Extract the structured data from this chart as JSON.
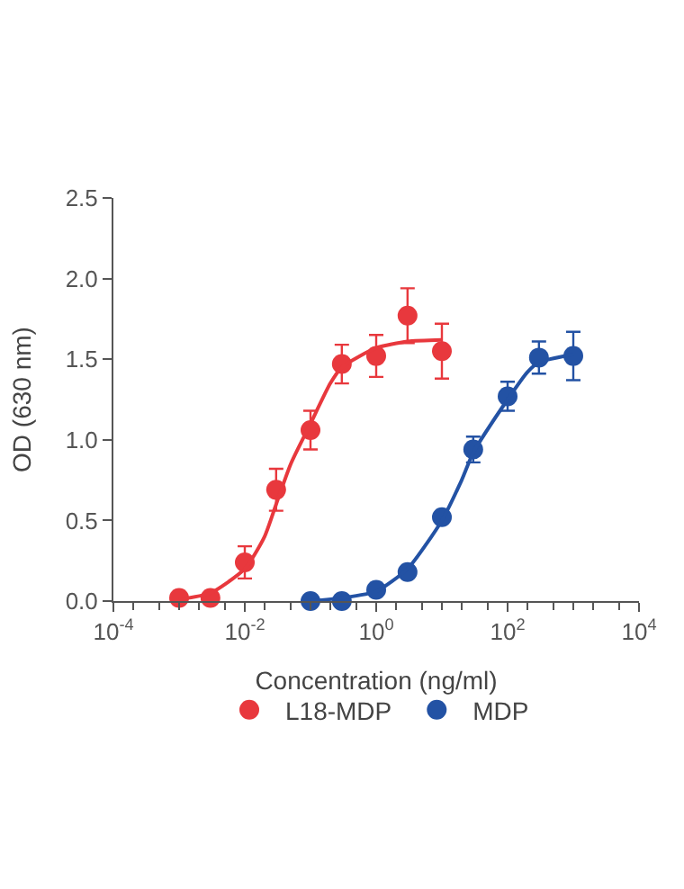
{
  "chart_data": {
    "type": "scatter",
    "xlabel": "Concentration (ng/ml)",
    "ylabel": "OD (630 nm)",
    "log": "x",
    "legend": "bottom",
    "marker": "circle",
    "xlim": [
      0.0001,
      10000
    ],
    "xticks": [
      {
        "value": 0.0001,
        "label": "10$^{-4}$"
      },
      {
        "value": 0.01,
        "label": "10$^{-2}$"
      },
      {
        "value": 1,
        "label": "10$^{0}$"
      },
      {
        "value": 100,
        "label": "10$^{2}$"
      },
      {
        "value": 10000,
        "label": "10$^{4}$"
      }
    ],
    "ylim": [
      0,
      2.5
    ],
    "yticks": [
      {
        "value": 0,
        "label": "0.0"
      },
      {
        "value": 0.5,
        "label": "0.5"
      },
      {
        "value": 1,
        "label": "1.0"
      },
      {
        "value": 1.5,
        "label": "1.5"
      },
      {
        "value": 2,
        "label": "2.0"
      },
      {
        "value": 2.5,
        "label": "2.5"
      }
    ],
    "series": [
      {
        "name": "L18-MDP",
        "color": "#e8383d",
        "x": [
          0.001,
          0.003,
          0.01,
          0.03,
          0.1,
          0.3,
          1,
          3,
          10
        ],
        "values": [
          0.02,
          0.02,
          0.24,
          0.69,
          1.06,
          1.47,
          1.52,
          1.77,
          1.55
        ],
        "errors": [
          null,
          null,
          0.1,
          0.13,
          0.12,
          0.12,
          0.13,
          0.17,
          0.17
        ]
      },
      {
        "name": "MDP",
        "color": "#2352a4",
        "x": [
          0.1,
          0.3,
          1,
          3,
          10,
          30,
          100,
          300,
          1000
        ],
        "values": [
          0.0,
          0.0,
          0.07,
          0.18,
          0.52,
          0.94,
          1.27,
          1.51,
          1.52
        ],
        "errors": [
          null,
          null,
          null,
          null,
          null,
          0.08,
          0.09,
          0.1,
          0.15
        ]
      },
      {
        "type": "line",
        "color": "#e8383d",
        "marker": "none",
        "x": [
          0.001,
          0.003,
          0.01,
          0.02,
          0.03,
          0.05,
          0.1,
          0.2,
          0.3,
          1,
          3,
          10
        ],
        "values": [
          0.01,
          0.05,
          0.2,
          0.4,
          0.6,
          0.85,
          1.1,
          1.35,
          1.45,
          1.57,
          1.61,
          1.62
        ]
      },
      {
        "type": "line",
        "color": "#2352a4",
        "marker": "none",
        "x": [
          0.1,
          0.3,
          1,
          3,
          10,
          20,
          30,
          100,
          200,
          300,
          1000
        ],
        "values": [
          0.0,
          0.02,
          0.06,
          0.2,
          0.5,
          0.75,
          0.92,
          1.25,
          1.42,
          1.48,
          1.53
        ]
      }
    ]
  }
}
